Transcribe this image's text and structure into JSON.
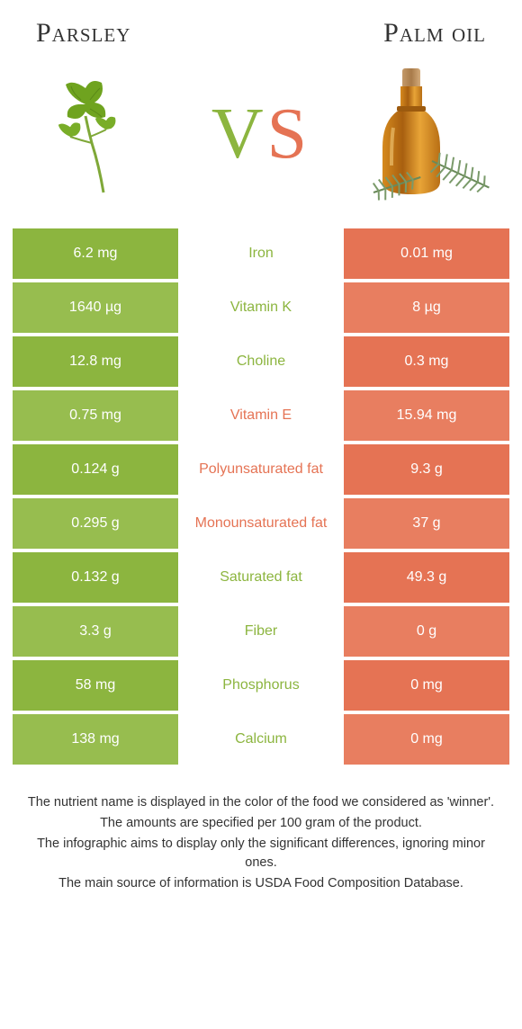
{
  "left_title": "Parsley",
  "right_title": "Palm oil",
  "vs": {
    "v": "V",
    "s": "S"
  },
  "colors": {
    "left_bg": "#8cb53f",
    "left_bg_alt": "#97bd4f",
    "right_bg": "#e57354",
    "right_bg_alt": "#e87e60",
    "mid_left_text": "#8cb53f",
    "mid_right_text": "#e57354",
    "vs_v": "#8cb53f",
    "vs_s": "#e57354"
  },
  "rows": [
    {
      "left": "6.2 mg",
      "mid": "Iron",
      "right": "0.01 mg",
      "winner": "left"
    },
    {
      "left": "1640 µg",
      "mid": "Vitamin K",
      "right": "8 µg",
      "winner": "left"
    },
    {
      "left": "12.8 mg",
      "mid": "Choline",
      "right": "0.3 mg",
      "winner": "left"
    },
    {
      "left": "0.75 mg",
      "mid": "Vitamin E",
      "right": "15.94 mg",
      "winner": "right"
    },
    {
      "left": "0.124 g",
      "mid": "Polyunsaturated fat",
      "right": "9.3 g",
      "winner": "right"
    },
    {
      "left": "0.295 g",
      "mid": "Monounsaturated fat",
      "right": "37 g",
      "winner": "right"
    },
    {
      "left": "0.132 g",
      "mid": "Saturated fat",
      "right": "49.3 g",
      "winner": "left"
    },
    {
      "left": "3.3 g",
      "mid": "Fiber",
      "right": "0 g",
      "winner": "left"
    },
    {
      "left": "58 mg",
      "mid": "Phosphorus",
      "right": "0 mg",
      "winner": "left"
    },
    {
      "left": "138 mg",
      "mid": "Calcium",
      "right": "0 mg",
      "winner": "left"
    }
  ],
  "footer": [
    "The nutrient name is displayed in the color of the food we considered as 'winner'.",
    "The amounts are specified per 100 gram of the product.",
    "The infographic aims to display only the significant differences, ignoring minor ones.",
    "The main source of information is USDA Food Composition Database."
  ]
}
